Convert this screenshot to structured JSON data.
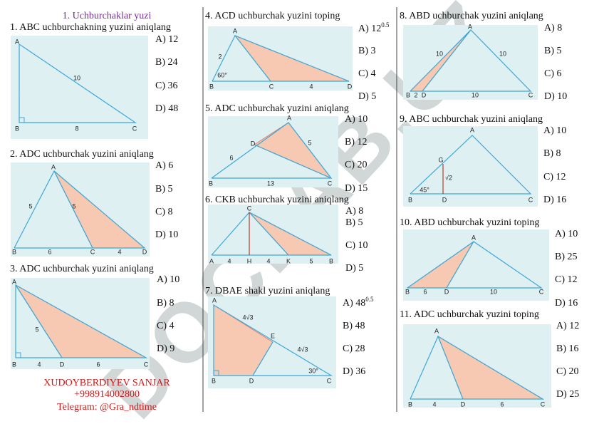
{
  "header": {
    "title": "1. Uchburchaklar yuzi"
  },
  "watermark": "DOCLAB.UZ",
  "problems": [
    {
      "question": "1. ABC uchburchakning yuzini aniqlang",
      "options": [
        "A) 12",
        "B) 24",
        "C) 36",
        "D) 48"
      ],
      "figure_labels": [
        "A",
        "10",
        "B",
        "8",
        "C"
      ]
    },
    {
      "question": "2. ADC uchburchak yuzini aniqlang",
      "options": [
        "A) 6",
        "B) 5",
        "C) 8",
        "D) 10"
      ],
      "figure_labels": [
        "A",
        "5",
        "5",
        "B",
        "6",
        "C",
        "4",
        "D"
      ]
    },
    {
      "question": "3. ADC uchburchak yuzini aniqlang",
      "options": [
        "A) 10",
        "B) 8",
        "C) 4",
        "D) 9"
      ],
      "figure_labels": [
        "A",
        "5",
        "B",
        "4",
        "D",
        "6",
        "C"
      ]
    },
    {
      "question": "4. ACD uchburchak yuzini toping",
      "options": [
        "A) 12",
        "B) 3",
        "C) 4",
        "D) 5"
      ],
      "option_exponents": {
        "0": "0.5"
      },
      "figure_labels": [
        "A",
        "2",
        "60°",
        "B",
        "C",
        "4",
        "D"
      ]
    },
    {
      "question": "5. ADC uchburchak yuzini aniqlang",
      "options": [
        "A) 10",
        "B) 12",
        "C) 20",
        "D) 15"
      ],
      "figure_labels": [
        "A",
        "D",
        "6",
        "5",
        "13",
        "B",
        "C"
      ]
    },
    {
      "question": "6. CKB uchburchak yuzini aniqlang",
      "options": [
        "A) 8",
        "B) 5",
        "C) 10",
        "D) 5"
      ],
      "figure_labels": [
        "C",
        "A",
        "4",
        "H",
        "4",
        "K",
        "5",
        "B"
      ]
    },
    {
      "question": "7. DBAE shakl yuzini aniqlang",
      "options": [
        "A) 48",
        "B) 48",
        "C) 28",
        "D) 36"
      ],
      "option_exponents": {
        "0": "0.5"
      },
      "figure_labels": [
        "A",
        "4√3",
        "E",
        "4√3",
        "B",
        "D",
        "30°",
        "C"
      ]
    },
    {
      "question": "8. ABD uchburchak yuzini aniqlang",
      "options": [
        "A) 8",
        "B) 5",
        "C) 6",
        "D) 10"
      ],
      "figure_labels": [
        "A",
        "10",
        "10",
        "B",
        "2",
        "D",
        "10",
        "C"
      ]
    },
    {
      "question": "9. ABC uchburchak yuzini aniqlang",
      "options": [
        "A) 10",
        "B) 8",
        "C) 12",
        "D) 16"
      ],
      "figure_labels": [
        "A",
        "G",
        "√2",
        "45°",
        "B",
        "D",
        "C"
      ]
    },
    {
      "question": "10. ABD uchburchak yuzini toping",
      "options": [
        "A) 10",
        "B) 25",
        "C) 12",
        "D) 16"
      ],
      "figure_labels": [
        "A",
        "B",
        "6",
        "D",
        "10",
        "C"
      ]
    },
    {
      "question": "11. ADC uchburchak yuzini toping",
      "options": [
        "A) 12",
        "B) 16",
        "C) 20",
        "D) 25"
      ],
      "figure_labels": [
        "A",
        "B",
        "4",
        "D",
        "6",
        "C"
      ]
    }
  ],
  "footer": {
    "name": "XUDOYBERDIYEV SANJAR",
    "phone": "+998914002800",
    "telegram": "Telegram: @Gra_ndtime"
  }
}
